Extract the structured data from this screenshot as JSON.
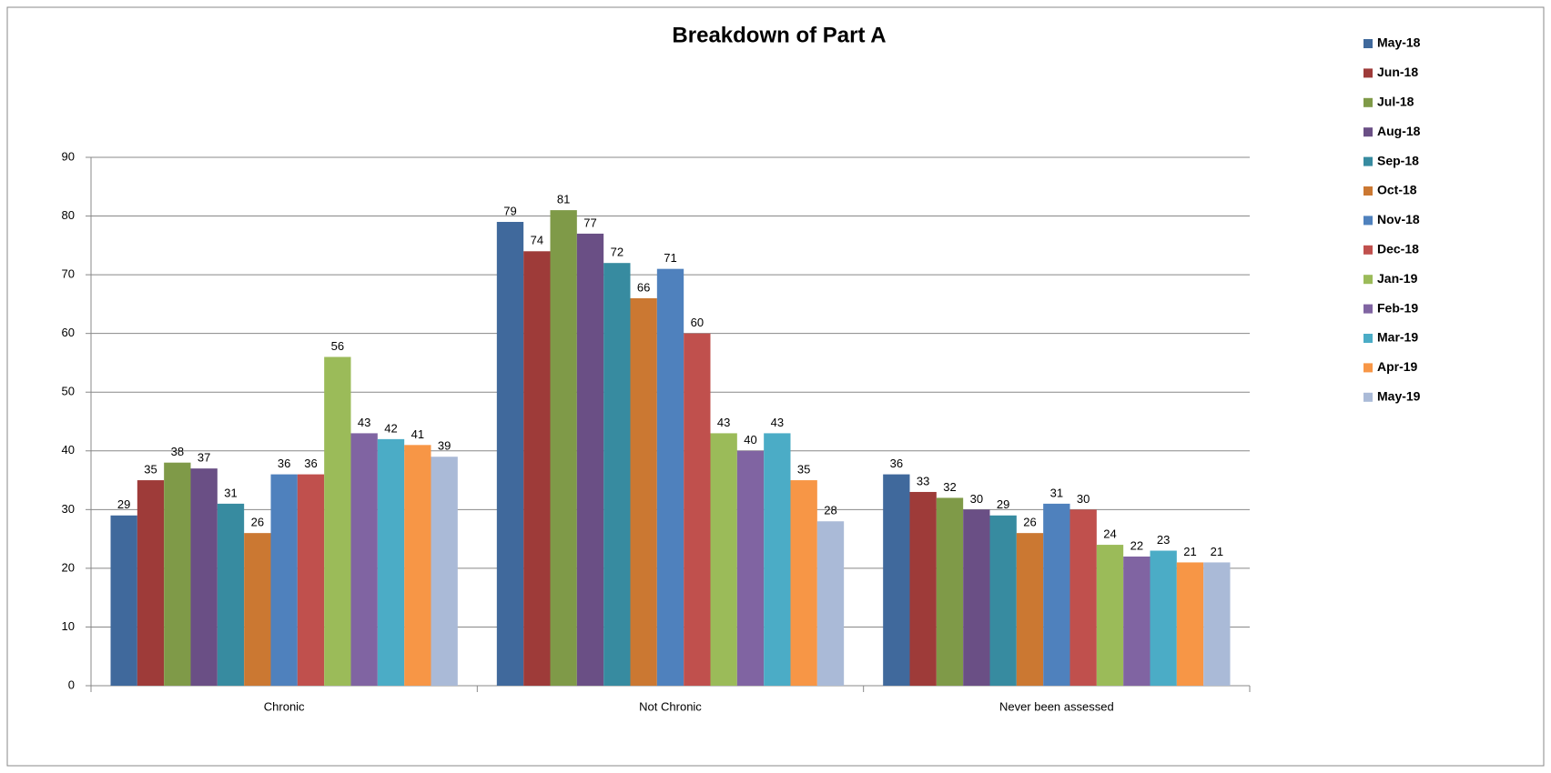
{
  "chart_data": {
    "type": "bar",
    "title": "Breakdown of Part A",
    "categories": [
      "Chronic",
      "Not Chronic",
      "Never been assessed"
    ],
    "series": [
      {
        "name": "May-18",
        "color": "#40699c",
        "values": [
          29,
          79,
          36
        ]
      },
      {
        "name": "Jun-18",
        "color": "#9e3b39",
        "values": [
          35,
          74,
          33
        ]
      },
      {
        "name": "Jul-18",
        "color": "#7f9a48",
        "values": [
          38,
          81,
          32
        ]
      },
      {
        "name": "Aug-18",
        "color": "#6a4f85",
        "values": [
          37,
          77,
          30
        ]
      },
      {
        "name": "Sep-18",
        "color": "#378ba0",
        "values": [
          31,
          72,
          29
        ]
      },
      {
        "name": "Oct-18",
        "color": "#cb7832",
        "values": [
          26,
          66,
          26
        ]
      },
      {
        "name": "Nov-18",
        "color": "#4f81bd",
        "values": [
          36,
          71,
          31
        ]
      },
      {
        "name": "Dec-18",
        "color": "#c0504d",
        "values": [
          36,
          60,
          30
        ]
      },
      {
        "name": "Jan-19",
        "color": "#9bbb59",
        "values": [
          56,
          43,
          24
        ]
      },
      {
        "name": "Feb-19",
        "color": "#8064a2",
        "values": [
          43,
          40,
          22
        ]
      },
      {
        "name": "Mar-19",
        "color": "#4bacc6",
        "values": [
          42,
          43,
          23
        ]
      },
      {
        "name": "Apr-19",
        "color": "#f79646",
        "values": [
          41,
          35,
          21
        ]
      },
      {
        "name": "May-19",
        "color": "#aabad7",
        "values": [
          39,
          28,
          21
        ]
      }
    ],
    "ylim": [
      0,
      90
    ],
    "yticks": [
      0,
      10,
      20,
      30,
      40,
      50,
      60,
      70,
      80,
      90
    ],
    "grid": true,
    "legend": "right"
  }
}
